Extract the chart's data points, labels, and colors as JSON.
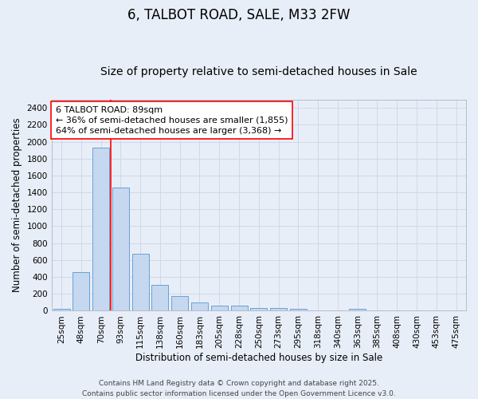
{
  "title": "6, TALBOT ROAD, SALE, M33 2FW",
  "subtitle": "Size of property relative to semi-detached houses in Sale",
  "xlabel": "Distribution of semi-detached houses by size in Sale",
  "ylabel": "Number of semi-detached properties",
  "categories": [
    "25sqm",
    "48sqm",
    "70sqm",
    "93sqm",
    "115sqm",
    "138sqm",
    "160sqm",
    "183sqm",
    "205sqm",
    "228sqm",
    "250sqm",
    "273sqm",
    "295sqm",
    "318sqm",
    "340sqm",
    "363sqm",
    "385sqm",
    "408sqm",
    "430sqm",
    "453sqm",
    "475sqm"
  ],
  "values": [
    25,
    455,
    1930,
    1455,
    670,
    305,
    175,
    95,
    60,
    60,
    35,
    35,
    20,
    0,
    0,
    20,
    0,
    0,
    0,
    0,
    0
  ],
  "bar_color": "#c5d8f0",
  "bar_edge_color": "#6aa0d4",
  "vline_x": 2.5,
  "vline_color": "red",
  "annotation_text": "6 TALBOT ROAD: 89sqm\n← 36% of semi-detached houses are smaller (1,855)\n64% of semi-detached houses are larger (3,368) →",
  "annotation_box_color": "white",
  "annotation_box_edge_color": "red",
  "ylim": [
    0,
    2500
  ],
  "yticks": [
    0,
    200,
    400,
    600,
    800,
    1000,
    1200,
    1400,
    1600,
    1800,
    2000,
    2200,
    2400
  ],
  "grid_color": "#d0d8e8",
  "background_color": "#e8eef8",
  "footer_text": "Contains HM Land Registry data © Crown copyright and database right 2025.\nContains public sector information licensed under the Open Government Licence v3.0.",
  "title_fontsize": 12,
  "subtitle_fontsize": 10,
  "axis_label_fontsize": 8.5,
  "tick_fontsize": 7.5,
  "annotation_fontsize": 8,
  "footer_fontsize": 6.5
}
